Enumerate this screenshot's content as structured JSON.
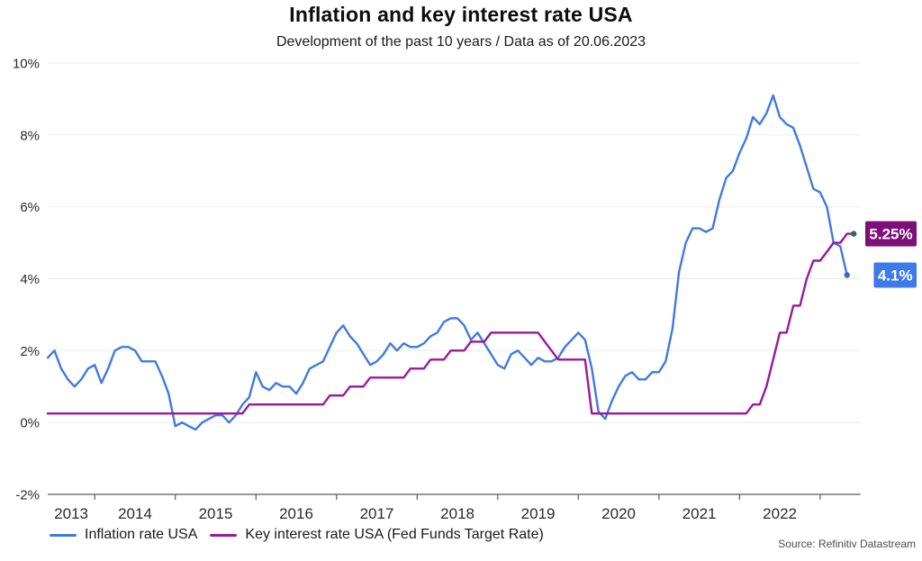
{
  "chart_data": {
    "type": "line",
    "title": "Inflation and key interest rate USA",
    "subtitle": "Development of the past 10 years / Data as of 20.06.2023",
    "source": "Source: Refinitiv Datastream",
    "x_start": "2013-06",
    "x_frequency": "monthly",
    "x_tick_labels": [
      "2013",
      "2014",
      "2015",
      "2016",
      "2017",
      "2018",
      "2019",
      "2020",
      "2021",
      "2022"
    ],
    "ylim": [
      -2,
      10
    ],
    "grid": true,
    "legend_position": "bottom",
    "y_ticks": [
      {
        "value": 10,
        "label": "10%"
      },
      {
        "value": 8,
        "label": "8%"
      },
      {
        "value": 6,
        "label": "6%"
      },
      {
        "value": 4,
        "label": "4%"
      },
      {
        "value": 2,
        "label": "2%"
      },
      {
        "value": 0,
        "label": "0%"
      },
      {
        "value": -2,
        "label": "-2%"
      }
    ],
    "colors": {
      "gridline": "#ebebeb",
      "axis_line": "#5a5a5a",
      "axis_text": "#2b2b2b"
    },
    "series": [
      {
        "id": "inflation-rate",
        "name": "Inflation rate USA",
        "color": "#4179e4",
        "badge_color": "#3e7ae9",
        "end_dot_color": "#3566cc",
        "end_label": "4.1%",
        "values": [
          1.8,
          2.0,
          1.5,
          1.2,
          1.0,
          1.2,
          1.5,
          1.6,
          1.1,
          1.5,
          2.0,
          2.1,
          2.1,
          2.0,
          1.7,
          1.7,
          1.7,
          1.3,
          0.8,
          -0.1,
          0.0,
          -0.1,
          -0.2,
          0.0,
          0.1,
          0.2,
          0.2,
          0.0,
          0.2,
          0.5,
          0.7,
          1.4,
          1.0,
          0.9,
          1.1,
          1.0,
          1.0,
          0.8,
          1.1,
          1.5,
          1.6,
          1.7,
          2.1,
          2.5,
          2.7,
          2.4,
          2.2,
          1.9,
          1.6,
          1.7,
          1.9,
          2.2,
          2.0,
          2.2,
          2.1,
          2.1,
          2.2,
          2.4,
          2.5,
          2.8,
          2.9,
          2.9,
          2.7,
          2.3,
          2.5,
          2.2,
          1.9,
          1.6,
          1.5,
          1.9,
          2.0,
          1.8,
          1.6,
          1.8,
          1.7,
          1.7,
          1.8,
          2.1,
          2.3,
          2.5,
          2.3,
          1.5,
          0.3,
          0.1,
          0.6,
          1.0,
          1.3,
          1.4,
          1.2,
          1.2,
          1.4,
          1.4,
          1.7,
          2.6,
          4.2,
          5.0,
          5.4,
          5.4,
          5.3,
          5.4,
          6.2,
          6.8,
          7.0,
          7.5,
          7.9,
          8.5,
          8.3,
          8.6,
          9.1,
          8.5,
          8.3,
          8.2,
          7.7,
          7.1,
          6.5,
          6.4,
          6.0,
          5.0,
          4.9,
          4.1
        ]
      },
      {
        "id": "key-interest-rate",
        "name": "Key interest rate USA (Fed Funds Target Rate)",
        "color": "#99199c",
        "badge_color": "#7d0f7b",
        "end_dot_color": "#2d6b4b",
        "end_label": "5.25%",
        "values": [
          0.25,
          0.25,
          0.25,
          0.25,
          0.25,
          0.25,
          0.25,
          0.25,
          0.25,
          0.25,
          0.25,
          0.25,
          0.25,
          0.25,
          0.25,
          0.25,
          0.25,
          0.25,
          0.25,
          0.25,
          0.25,
          0.25,
          0.25,
          0.25,
          0.25,
          0.25,
          0.25,
          0.25,
          0.25,
          0.25,
          0.5,
          0.5,
          0.5,
          0.5,
          0.5,
          0.5,
          0.5,
          0.5,
          0.5,
          0.5,
          0.5,
          0.5,
          0.75,
          0.75,
          0.75,
          1.0,
          1.0,
          1.0,
          1.25,
          1.25,
          1.25,
          1.25,
          1.25,
          1.25,
          1.5,
          1.5,
          1.5,
          1.75,
          1.75,
          1.75,
          2.0,
          2.0,
          2.0,
          2.25,
          2.25,
          2.25,
          2.5,
          2.5,
          2.5,
          2.5,
          2.5,
          2.5,
          2.5,
          2.5,
          2.25,
          2.0,
          1.75,
          1.75,
          1.75,
          1.75,
          1.75,
          0.25,
          0.25,
          0.25,
          0.25,
          0.25,
          0.25,
          0.25,
          0.25,
          0.25,
          0.25,
          0.25,
          0.25,
          0.25,
          0.25,
          0.25,
          0.25,
          0.25,
          0.25,
          0.25,
          0.25,
          0.25,
          0.25,
          0.25,
          0.25,
          0.5,
          0.5,
          1.0,
          1.75,
          2.5,
          2.5,
          3.25,
          3.25,
          4.0,
          4.5,
          4.5,
          4.75,
          5.0,
          5.0,
          5.25,
          5.25
        ]
      }
    ]
  }
}
